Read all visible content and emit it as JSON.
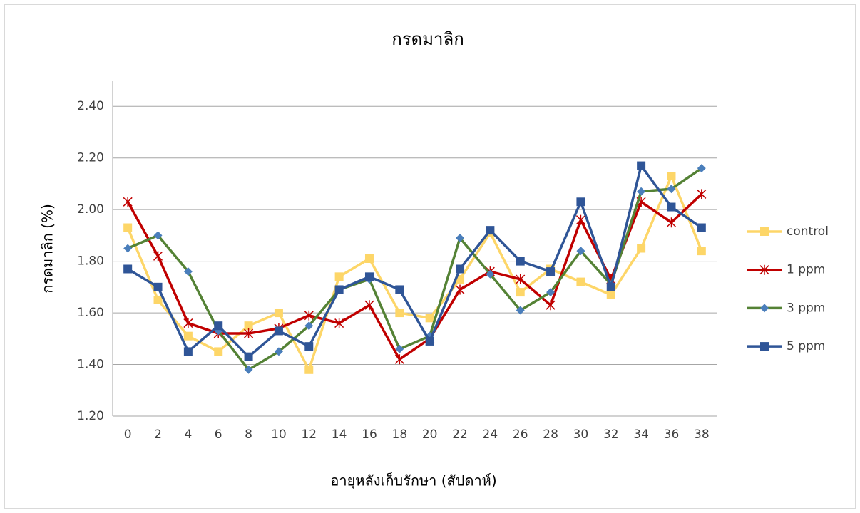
{
  "chart_data": {
    "type": "line",
    "title": "กรดมาลิก",
    "x_label": "อายุหลังเก็บรักษา (สัปดาห์)",
    "y_label": "กรดมาลิก (%)",
    "categories": [
      "0",
      "2",
      "4",
      "6",
      "8",
      "10",
      "12",
      "14",
      "16",
      "18",
      "20",
      "22",
      "24",
      "26",
      "28",
      "30",
      "32",
      "34",
      "36",
      "38"
    ],
    "ylim": [
      1.2,
      2.5
    ],
    "yticks": [
      {
        "value": 1.2,
        "label": "1.20"
      },
      {
        "value": 1.4,
        "label": "1.40"
      },
      {
        "value": 1.6,
        "label": "1.60"
      },
      {
        "value": 1.8,
        "label": "1.80"
      },
      {
        "value": 2.0,
        "label": "2.00"
      },
      {
        "value": 2.2,
        "label": "2.20"
      },
      {
        "value": 2.4,
        "label": "2.40"
      }
    ],
    "grid": true,
    "legend": "right",
    "series": [
      {
        "name": "control",
        "color": "#fdd668",
        "marker": "square",
        "values": [
          1.93,
          1.65,
          1.51,
          1.45,
          1.55,
          1.6,
          1.38,
          1.74,
          1.81,
          1.6,
          1.58,
          1.73,
          1.91,
          1.68,
          1.77,
          1.72,
          1.67,
          1.85,
          2.13,
          1.84
        ]
      },
      {
        "name": "1 ppm",
        "color": "#c00000",
        "marker": "asterisk",
        "values": [
          2.03,
          1.82,
          1.56,
          1.52,
          1.52,
          1.54,
          1.59,
          1.56,
          1.63,
          1.42,
          1.5,
          1.69,
          1.76,
          1.73,
          1.63,
          1.96,
          1.73,
          2.03,
          1.95,
          2.06
        ]
      },
      {
        "name": "3 ppm",
        "color": "#548235",
        "marker": "diamond",
        "values": [
          1.85,
          1.9,
          1.76,
          1.53,
          1.38,
          1.45,
          1.55,
          1.69,
          1.73,
          1.46,
          1.51,
          1.89,
          1.75,
          1.61,
          1.68,
          1.84,
          1.71,
          2.07,
          2.08,
          2.16
        ]
      },
      {
        "name": "5 ppm",
        "color": "#2f5597",
        "marker": "square",
        "values": [
          1.77,
          1.7,
          1.45,
          1.55,
          1.43,
          1.53,
          1.47,
          1.69,
          1.74,
          1.69,
          1.49,
          1.77,
          1.92,
          1.8,
          1.76,
          2.03,
          1.7,
          2.17,
          2.01,
          1.93
        ]
      }
    ]
  }
}
